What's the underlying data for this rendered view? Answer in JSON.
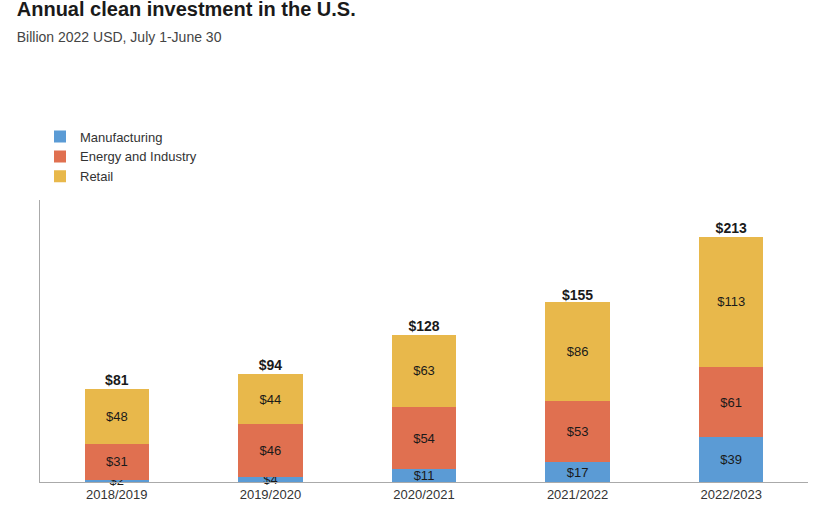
{
  "chart_data": {
    "type": "bar",
    "title": "Annual clean investment in the U.S.",
    "subtitle": "Billion 2022 USD, July 1-June 30",
    "categories": [
      "2018/2019",
      "2019/2020",
      "2020/2021",
      "2021/2022",
      "2022/2023"
    ],
    "series": [
      {
        "name": "Manufacturing",
        "color": "#5b9bd5",
        "values": [
          2,
          4,
          11,
          17,
          39
        ],
        "value_labels": [
          "$2",
          "$4",
          "$11",
          "$17",
          "$39"
        ]
      },
      {
        "name": "Energy and Industry",
        "color": "#e07050",
        "values": [
          31,
          46,
          54,
          53,
          61
        ],
        "value_labels": [
          "$31",
          "$46",
          "$54",
          "$53",
          "$61"
        ]
      },
      {
        "name": "Retail",
        "color": "#e8b84b",
        "values": [
          48,
          44,
          63,
          86,
          113
        ],
        "value_labels": [
          "$48",
          "$44",
          "$63",
          "$86",
          "$113"
        ]
      }
    ],
    "totals": [
      81,
      94,
      128,
      155,
      213
    ],
    "total_labels": [
      "$81",
      "$94",
      "$128",
      "$155",
      "$213"
    ],
    "stacked": true,
    "data_labels": true,
    "ylim": [
      0,
      245
    ],
    "tick_labels": "x",
    "grid": false,
    "legend": "upper left"
  }
}
